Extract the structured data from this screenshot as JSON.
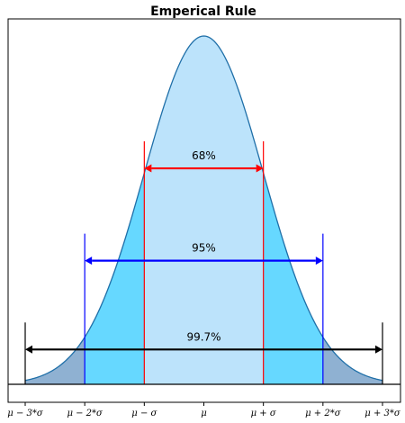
{
  "chart_data": {
    "type": "area",
    "title": "Emperical Rule",
    "xlabel": "",
    "ylabel": "",
    "xlim": [
      -3,
      3
    ],
    "distribution": "standard normal",
    "grid": false,
    "x_ticks": [
      {
        "value": -3,
        "label": "μ − 3*σ"
      },
      {
        "value": -2,
        "label": "μ − 2*σ"
      },
      {
        "value": -1,
        "label": "μ − σ"
      },
      {
        "value": 0,
        "label": "μ"
      },
      {
        "value": 1,
        "label": "μ + σ"
      },
      {
        "value": 2,
        "label": "μ + 2*σ"
      },
      {
        "value": 3,
        "label": "μ + 3*σ"
      }
    ],
    "regions": [
      {
        "from": -3,
        "to": -2,
        "color": "#8fb1d2"
      },
      {
        "from": -2,
        "to": -1,
        "color": "#66d8ff"
      },
      {
        "from": -1,
        "to": 1,
        "color": "#bce3fb"
      },
      {
        "from": 1,
        "to": 2,
        "color": "#66d8ff"
      },
      {
        "from": 2,
        "to": 3,
        "color": "#8fb1d2"
      }
    ],
    "curve_color": "#1f6fa8",
    "intervals": [
      {
        "from": -1,
        "to": 1,
        "label": "68%",
        "color": "#ff0000",
        "level": 0.62
      },
      {
        "from": -2,
        "to": 2,
        "label": "95%",
        "color": "#0000ff",
        "level": 0.355
      },
      {
        "from": -3,
        "to": 3,
        "label": "99.7%",
        "color": "#000000",
        "level": 0.1
      }
    ]
  }
}
